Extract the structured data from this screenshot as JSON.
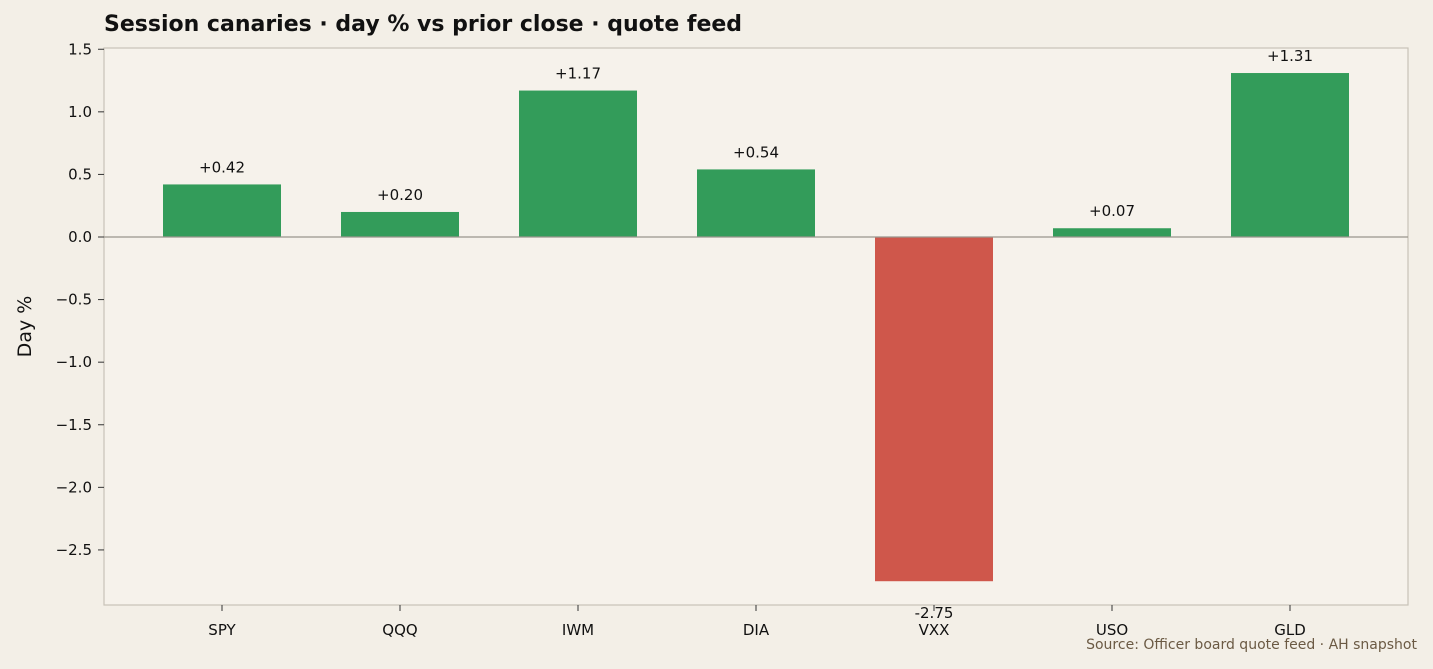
{
  "title": "Session canaries · day % vs prior close · quote feed",
  "source": "Source: Officer board quote feed · AH snapshot",
  "colors": {
    "background": "#f3efe7",
    "plot_background": "#f6f2eb",
    "positive": "#339c5a",
    "negative": "#cf574b",
    "frame": "#c8c2b8",
    "zero_line": "#9a958d"
  },
  "chart_data": {
    "type": "bar",
    "title": "Session canaries · day % vs prior close · quote feed",
    "xlabel": "",
    "ylabel": "Day %",
    "categories": [
      "SPY",
      "QQQ",
      "IWM",
      "DIA",
      "VXX",
      "USO",
      "GLD"
    ],
    "values": [
      0.42,
      0.2,
      1.17,
      0.54,
      -2.75,
      0.07,
      1.31
    ],
    "value_labels": [
      "+0.42",
      "+0.20",
      "+1.17",
      "+0.54",
      "-2.75",
      "+0.07",
      "+1.31"
    ],
    "ylim": [
      -2.94,
      1.51
    ],
    "yticks": [
      1.5,
      1.0,
      0.5,
      0.0,
      -0.5,
      -1.0,
      -1.5,
      -2.0,
      -2.5
    ],
    "ytick_labels": [
      "1.5",
      "1.0",
      "0.5",
      "0.0",
      "−0.5",
      "−1.0",
      "−1.5",
      "−2.0",
      "−2.5"
    ],
    "grid": false,
    "legend": "none"
  }
}
